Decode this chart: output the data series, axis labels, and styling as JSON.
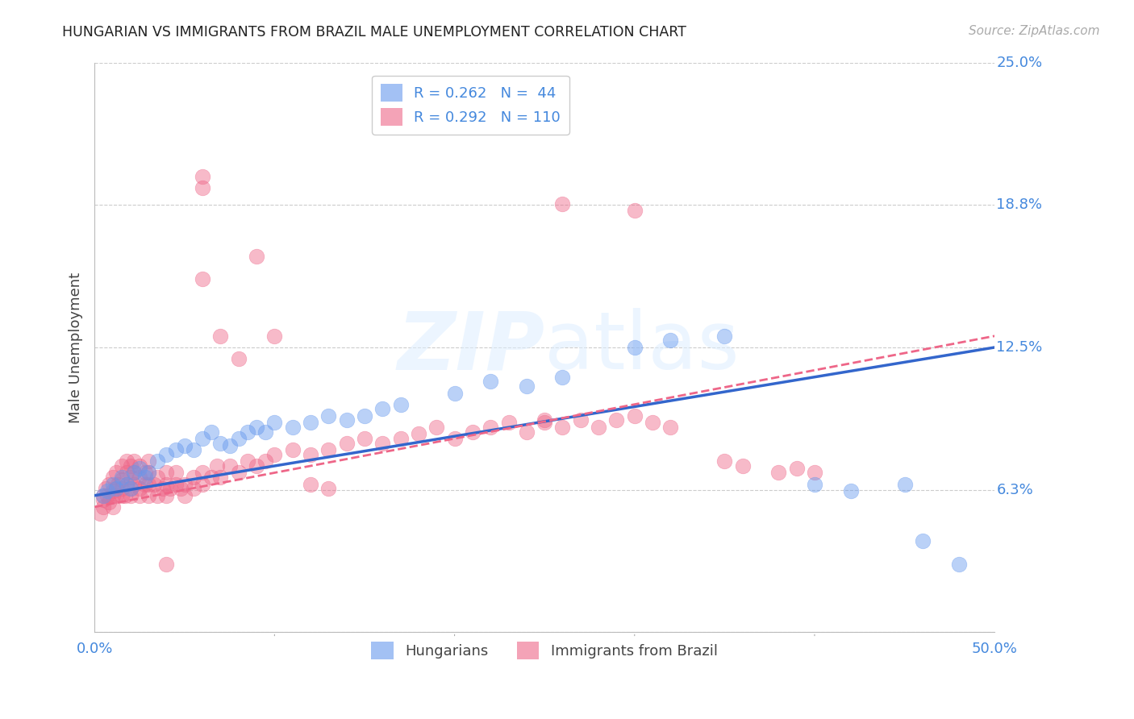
{
  "title": "HUNGARIAN VS IMMIGRANTS FROM BRAZIL MALE UNEMPLOYMENT CORRELATION CHART",
  "source": "Source: ZipAtlas.com",
  "ylabel": "Male Unemployment",
  "xlim": [
    0.0,
    0.5
  ],
  "ylim": [
    0.0,
    0.25
  ],
  "ytick_positions": [
    0.0,
    0.0625,
    0.125,
    0.1875,
    0.25
  ],
  "ytick_labels": [
    "",
    "6.3%",
    "12.5%",
    "18.8%",
    "25.0%"
  ],
  "grid_color": "#cccccc",
  "background_color": "#ffffff",
  "axis_label_color": "#4488dd",
  "title_color": "#222222",
  "blue_color": "#6699ee",
  "pink_color": "#ee6688",
  "blue_scatter": [
    [
      0.005,
      0.06
    ],
    [
      0.007,
      0.062
    ],
    [
      0.01,
      0.065
    ],
    [
      0.012,
      0.063
    ],
    [
      0.015,
      0.068
    ],
    [
      0.018,
      0.065
    ],
    [
      0.02,
      0.063
    ],
    [
      0.022,
      0.07
    ],
    [
      0.025,
      0.072
    ],
    [
      0.028,
      0.068
    ],
    [
      0.03,
      0.07
    ],
    [
      0.035,
      0.075
    ],
    [
      0.04,
      0.078
    ],
    [
      0.045,
      0.08
    ],
    [
      0.05,
      0.082
    ],
    [
      0.055,
      0.08
    ],
    [
      0.06,
      0.085
    ],
    [
      0.065,
      0.088
    ],
    [
      0.07,
      0.083
    ],
    [
      0.075,
      0.082
    ],
    [
      0.08,
      0.085
    ],
    [
      0.085,
      0.088
    ],
    [
      0.09,
      0.09
    ],
    [
      0.095,
      0.088
    ],
    [
      0.1,
      0.092
    ],
    [
      0.11,
      0.09
    ],
    [
      0.12,
      0.092
    ],
    [
      0.13,
      0.095
    ],
    [
      0.14,
      0.093
    ],
    [
      0.15,
      0.095
    ],
    [
      0.16,
      0.098
    ],
    [
      0.17,
      0.1
    ],
    [
      0.2,
      0.105
    ],
    [
      0.22,
      0.11
    ],
    [
      0.24,
      0.108
    ],
    [
      0.26,
      0.112
    ],
    [
      0.3,
      0.125
    ],
    [
      0.32,
      0.128
    ],
    [
      0.35,
      0.13
    ],
    [
      0.4,
      0.065
    ],
    [
      0.42,
      0.062
    ],
    [
      0.45,
      0.065
    ],
    [
      0.46,
      0.04
    ],
    [
      0.48,
      0.03
    ]
  ],
  "pink_scatter": [
    [
      0.003,
      0.052
    ],
    [
      0.005,
      0.055
    ],
    [
      0.005,
      0.06
    ],
    [
      0.005,
      0.058
    ],
    [
      0.006,
      0.063
    ],
    [
      0.007,
      0.06
    ],
    [
      0.008,
      0.057
    ],
    [
      0.008,
      0.065
    ],
    [
      0.01,
      0.06
    ],
    [
      0.01,
      0.062
    ],
    [
      0.01,
      0.068
    ],
    [
      0.01,
      0.055
    ],
    [
      0.012,
      0.06
    ],
    [
      0.012,
      0.063
    ],
    [
      0.012,
      0.07
    ],
    [
      0.013,
      0.065
    ],
    [
      0.015,
      0.06
    ],
    [
      0.015,
      0.063
    ],
    [
      0.015,
      0.067
    ],
    [
      0.015,
      0.073
    ],
    [
      0.017,
      0.06
    ],
    [
      0.018,
      0.065
    ],
    [
      0.018,
      0.07
    ],
    [
      0.018,
      0.075
    ],
    [
      0.02,
      0.06
    ],
    [
      0.02,
      0.063
    ],
    [
      0.02,
      0.068
    ],
    [
      0.02,
      0.073
    ],
    [
      0.022,
      0.065
    ],
    [
      0.022,
      0.07
    ],
    [
      0.022,
      0.075
    ],
    [
      0.025,
      0.06
    ],
    [
      0.025,
      0.063
    ],
    [
      0.025,
      0.068
    ],
    [
      0.025,
      0.073
    ],
    [
      0.028,
      0.065
    ],
    [
      0.028,
      0.07
    ],
    [
      0.03,
      0.06
    ],
    [
      0.03,
      0.065
    ],
    [
      0.03,
      0.07
    ],
    [
      0.03,
      0.075
    ],
    [
      0.033,
      0.065
    ],
    [
      0.035,
      0.06
    ],
    [
      0.035,
      0.068
    ],
    [
      0.038,
      0.063
    ],
    [
      0.04,
      0.06
    ],
    [
      0.04,
      0.065
    ],
    [
      0.04,
      0.07
    ],
    [
      0.042,
      0.063
    ],
    [
      0.045,
      0.065
    ],
    [
      0.045,
      0.07
    ],
    [
      0.048,
      0.063
    ],
    [
      0.05,
      0.06
    ],
    [
      0.05,
      0.065
    ],
    [
      0.055,
      0.063
    ],
    [
      0.055,
      0.068
    ],
    [
      0.06,
      0.065
    ],
    [
      0.06,
      0.07
    ],
    [
      0.065,
      0.068
    ],
    [
      0.068,
      0.073
    ],
    [
      0.07,
      0.068
    ],
    [
      0.075,
      0.073
    ],
    [
      0.08,
      0.07
    ],
    [
      0.085,
      0.075
    ],
    [
      0.09,
      0.073
    ],
    [
      0.095,
      0.075
    ],
    [
      0.1,
      0.078
    ],
    [
      0.11,
      0.08
    ],
    [
      0.12,
      0.078
    ],
    [
      0.13,
      0.08
    ],
    [
      0.14,
      0.083
    ],
    [
      0.15,
      0.085
    ],
    [
      0.16,
      0.083
    ],
    [
      0.17,
      0.085
    ],
    [
      0.18,
      0.087
    ],
    [
      0.19,
      0.09
    ],
    [
      0.2,
      0.085
    ],
    [
      0.21,
      0.088
    ],
    [
      0.22,
      0.09
    ],
    [
      0.23,
      0.092
    ],
    [
      0.24,
      0.088
    ],
    [
      0.25,
      0.092
    ],
    [
      0.26,
      0.09
    ],
    [
      0.27,
      0.093
    ],
    [
      0.28,
      0.09
    ],
    [
      0.29,
      0.093
    ],
    [
      0.3,
      0.095
    ],
    [
      0.04,
      0.03
    ],
    [
      0.06,
      0.155
    ],
    [
      0.06,
      0.195
    ],
    [
      0.09,
      0.165
    ],
    [
      0.1,
      0.13
    ],
    [
      0.07,
      0.13
    ],
    [
      0.08,
      0.12
    ],
    [
      0.06,
      0.2
    ],
    [
      0.12,
      0.065
    ],
    [
      0.13,
      0.063
    ],
    [
      0.3,
      0.185
    ],
    [
      0.26,
      0.188
    ],
    [
      0.35,
      0.075
    ],
    [
      0.36,
      0.073
    ],
    [
      0.38,
      0.07
    ],
    [
      0.39,
      0.072
    ],
    [
      0.4,
      0.07
    ],
    [
      0.25,
      0.093
    ],
    [
      0.31,
      0.092
    ],
    [
      0.32,
      0.09
    ]
  ],
  "blue_line_x": [
    0.0,
    0.5
  ],
  "blue_line_y": [
    0.06,
    0.125
  ],
  "pink_line_x": [
    0.0,
    0.5
  ],
  "pink_line_y": [
    0.055,
    0.13
  ]
}
